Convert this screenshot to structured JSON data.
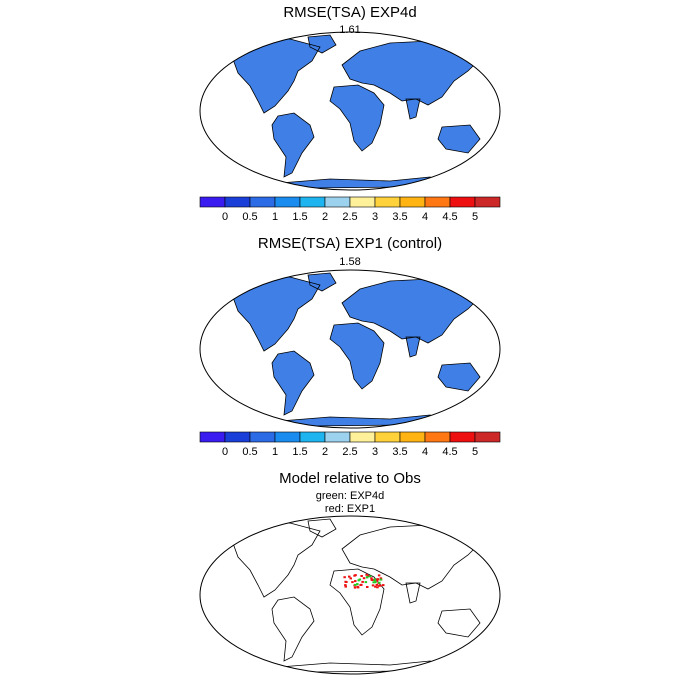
{
  "panels": [
    {
      "title": "RMSE(TSA) EXP4d",
      "value": "1.61"
    },
    {
      "title": "RMSE(TSA) EXP1 (control)",
      "value": "1.58"
    },
    {
      "title": "Model relative to Obs",
      "lines": [
        "green: EXP4d",
        "red: EXP1"
      ]
    }
  ],
  "colorbar": {
    "labels": [
      "0",
      "0.5",
      "1",
      "1.5",
      "2",
      "2.5",
      "3",
      "3.5",
      "4",
      "4.5",
      "5"
    ],
    "colors": [
      "#3a1cf0",
      "#1a3ed8",
      "#2c6be6",
      "#1a8cf0",
      "#1eb4f0",
      "#9cd2ee",
      "#fff09a",
      "#ffd23c",
      "#ffb414",
      "#ff7814",
      "#ee1010",
      "#cc2828"
    ]
  },
  "map_colors": {
    "land_base": "#3f7fe6",
    "land_mid": "#5aa7f0",
    "warm": "#ffd23c",
    "hot": "#ee1010",
    "green": "#22cc22",
    "red": "#ee1111"
  }
}
